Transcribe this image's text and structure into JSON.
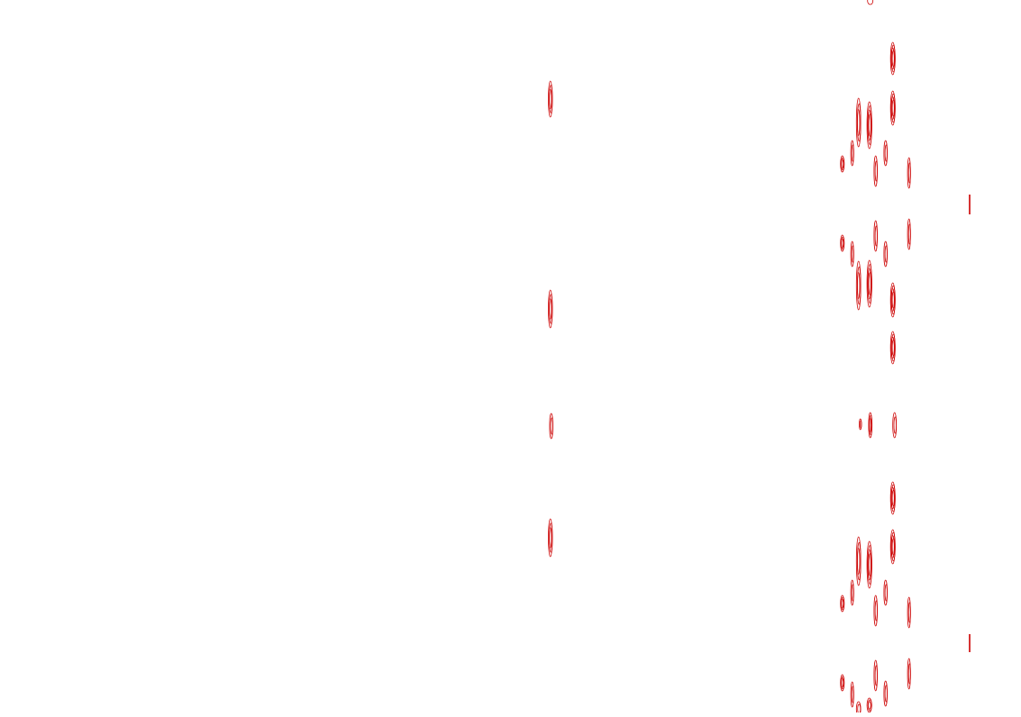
{
  "canvas": {
    "background_color": "#ffffff",
    "mark_color": "#cc0000",
    "mark_shape": "contour-ellipse"
  }
}
